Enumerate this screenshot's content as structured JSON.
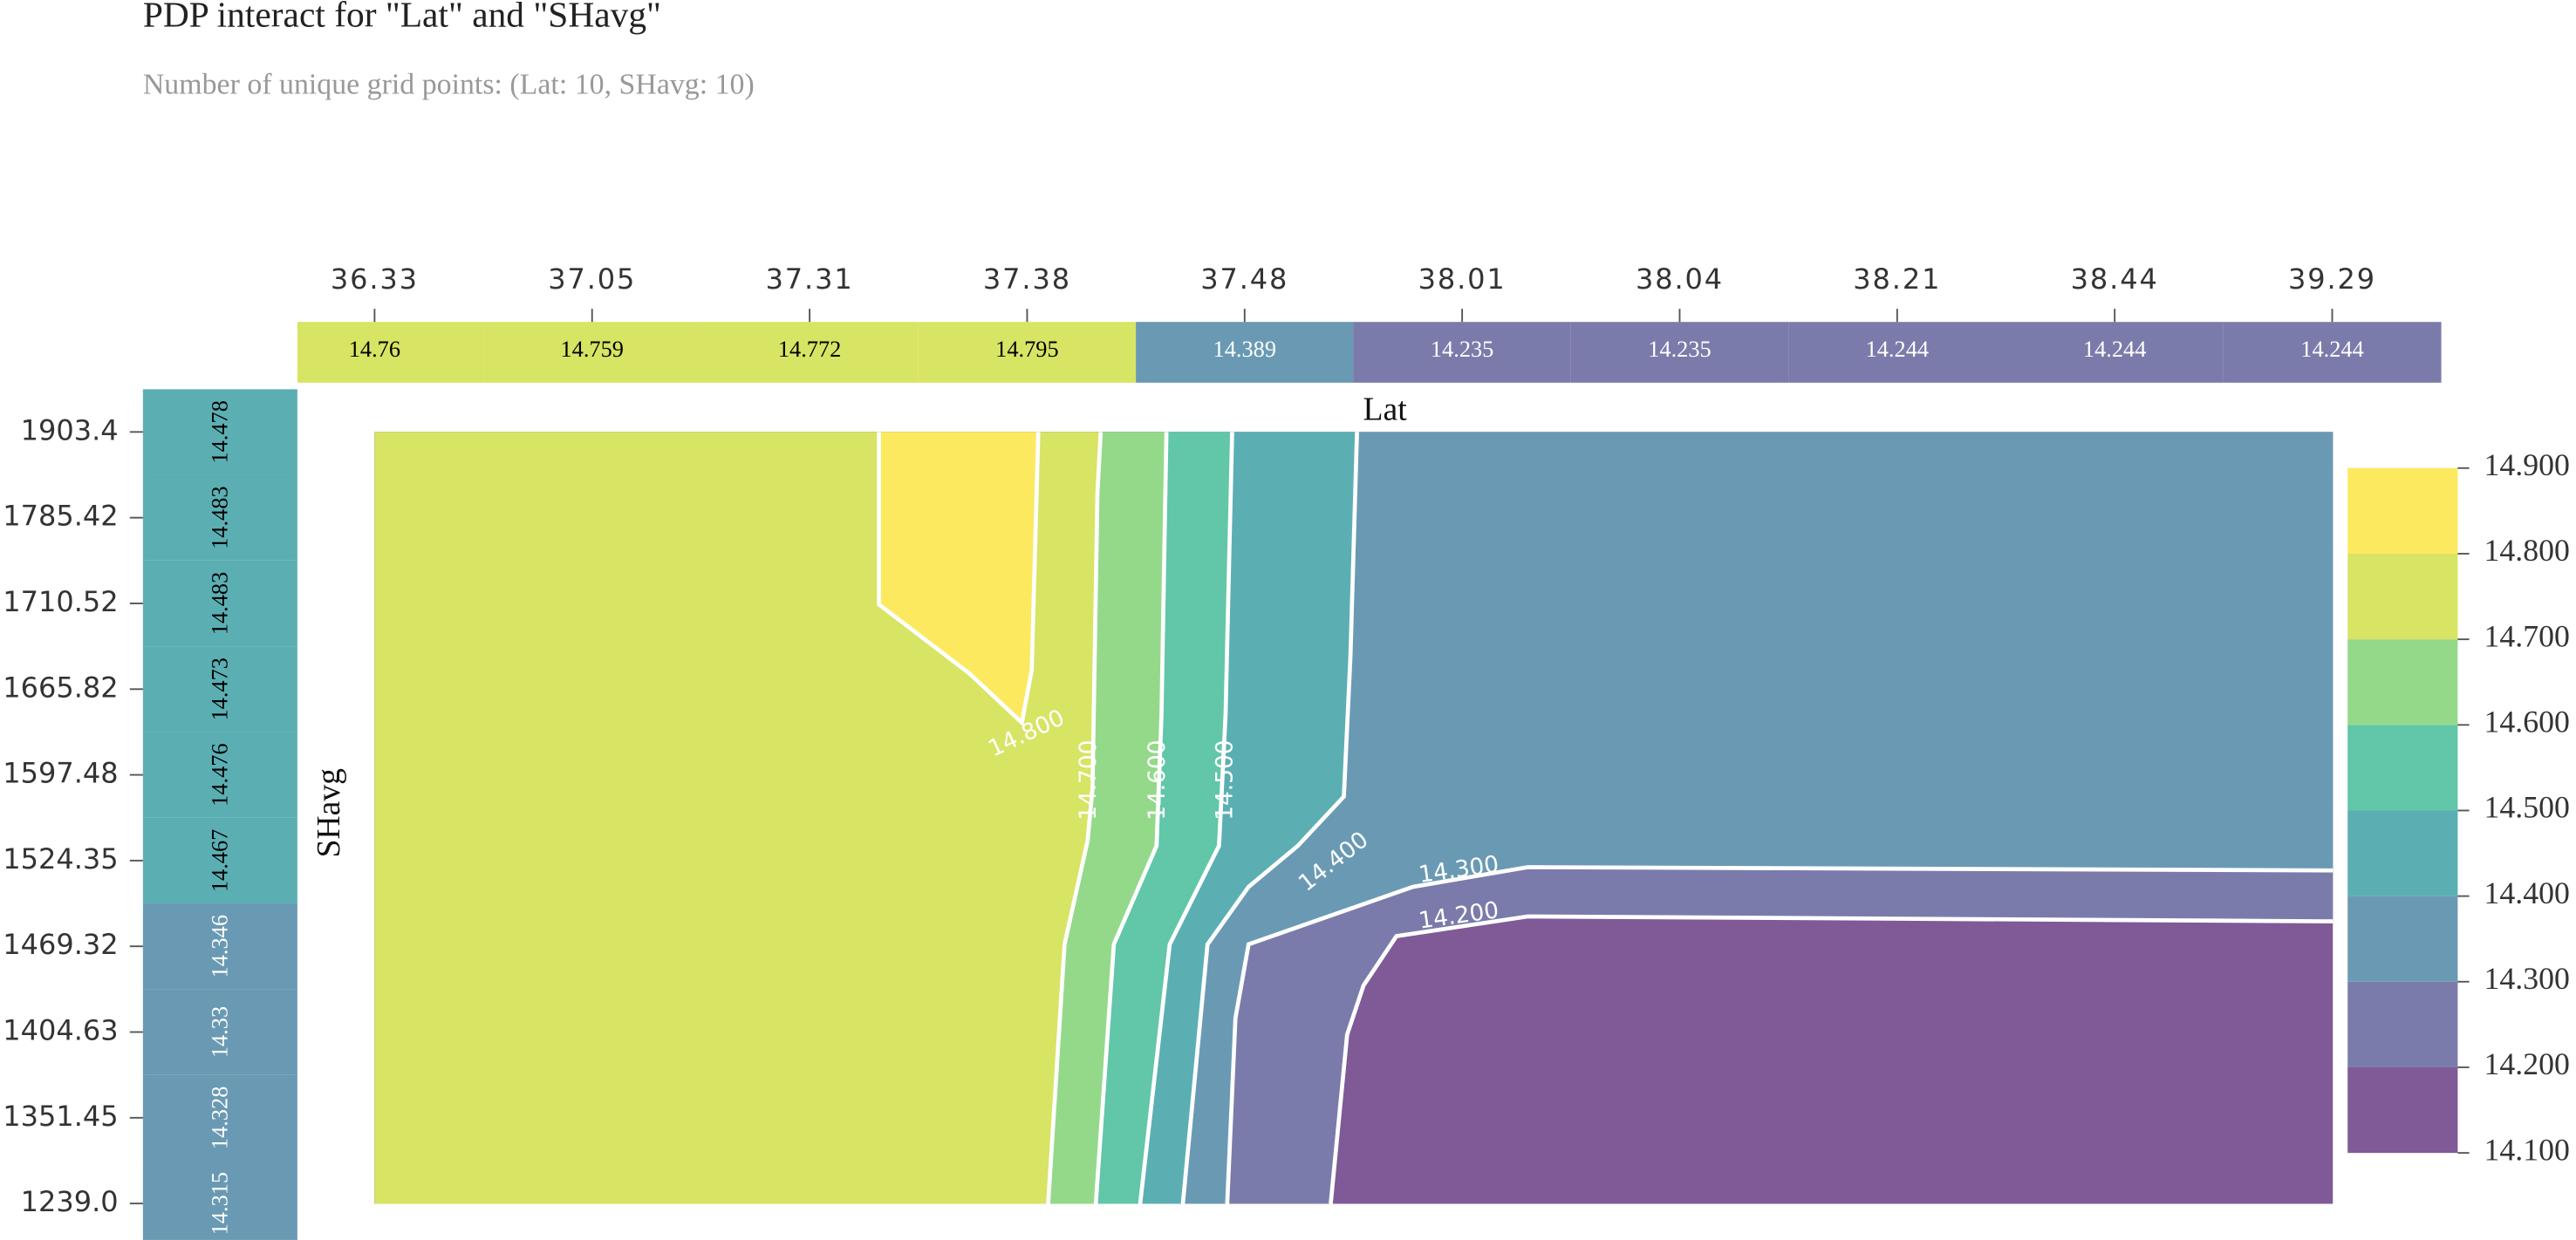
{
  "chart_data": {
    "type": "pdp_interact",
    "title": "PDP interact for \"Lat\" and \"SHavg\"",
    "subtitle": "Number of unique grid points: (Lat: 10, SHavg: 10)",
    "x_label": "Lat",
    "y_label": "SHavg",
    "x_categories": [
      "36.33",
      "37.05",
      "37.31",
      "37.38",
      "37.48",
      "38.01",
      "38.04",
      "38.21",
      "38.44",
      "39.29"
    ],
    "x_values": [
      14.76,
      14.759,
      14.772,
      14.795,
      14.389,
      14.235,
      14.235,
      14.244,
      14.244,
      14.244
    ],
    "y_categories": [
      "1903.4",
      "1785.42",
      "1710.52",
      "1665.82",
      "1597.48",
      "1524.35",
      "1469.32",
      "1404.63",
      "1351.45",
      "1239.0"
    ],
    "y_values": [
      14.478,
      14.483,
      14.483,
      14.473,
      14.476,
      14.467,
      14.346,
      14.33,
      14.328,
      14.315
    ],
    "clim": [
      14.1,
      14.9
    ],
    "colorbar_ticks": [
      {
        "value": 14.1,
        "label": "14.100"
      },
      {
        "value": 14.2,
        "label": "14.200"
      },
      {
        "value": 14.3,
        "label": "14.300"
      },
      {
        "value": 14.4,
        "label": "14.400"
      },
      {
        "value": 14.5,
        "label": "14.500"
      },
      {
        "value": 14.6,
        "label": "14.600"
      },
      {
        "value": 14.7,
        "label": "14.700"
      },
      {
        "value": 14.8,
        "label": "14.800"
      },
      {
        "value": 14.9,
        "label": "14.900"
      }
    ],
    "colors": [
      "#7f5a96",
      "#7b7bab",
      "#6a9ab3",
      "#5bafb3",
      "#62c6a8",
      "#94d98a",
      "#d8e463",
      "#fde95f"
    ],
    "contours": [
      {
        "value": 14.8,
        "label": "14.800"
      },
      {
        "value": 14.7,
        "label": "14.700"
      },
      {
        "value": 14.6,
        "label": "14.600"
      },
      {
        "value": 14.5,
        "label": "14.500"
      },
      {
        "value": 14.4,
        "label": "14.400"
      },
      {
        "value": 14.3,
        "label": "14.300"
      },
      {
        "value": 14.2,
        "label": "14.200"
      }
    ]
  }
}
